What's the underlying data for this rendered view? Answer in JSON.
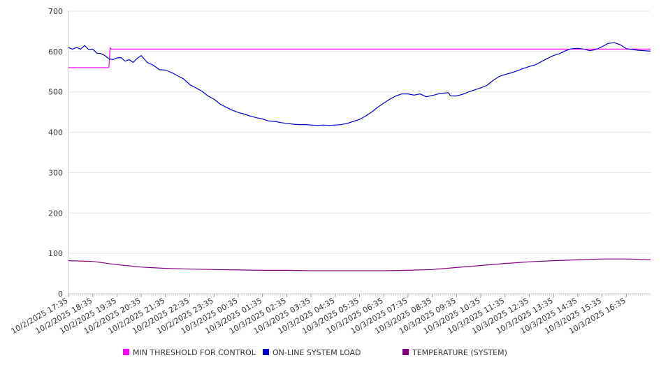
{
  "chart_data": {
    "type": "line",
    "title": "",
    "xlabel": "",
    "ylabel": "",
    "ylim": [
      0,
      700
    ],
    "yticks": [
      0,
      100,
      200,
      300,
      400,
      500,
      600,
      700
    ],
    "grid": true,
    "legend_position": "bottom",
    "x_tick_labels": [
      "10/2/2025 17:35",
      "10/2/2025 18:35",
      "10/2/2025 19:35",
      "10/2/2025 20:35",
      "10/2/2025 21:35",
      "10/2/2025 22:35",
      "10/2/2025 23:35",
      "10/3/2025 00:35",
      "10/3/2025 01:35",
      "10/3/2025 02:35",
      "10/3/2025 03:35",
      "10/3/2025 04:35",
      "10/3/2025 05:35",
      "10/3/2025 06:35",
      "10/3/2025 07:35",
      "10/3/2025 08:35",
      "10/3/2025 09:35",
      "10/3/2025 10:35",
      "10/3/2025 11:35",
      "10/3/2025 12:35",
      "10/3/2025 13:35",
      "10/3/2025 14:35",
      "10/3/2025 15:35",
      "10/3/2025 16:35"
    ],
    "x_range": [
      "10/2/2025 17:35",
      "10/3/2025 17:35"
    ],
    "series": [
      {
        "name": "MIN THRESHOLD FOR CONTROL",
        "color": "#ff00ff",
        "points": [
          [
            "10/2/2025 17:35",
            560
          ],
          [
            "10/2/2025 19:15",
            560
          ],
          [
            "10/2/2025 19:18",
            610
          ],
          [
            "10/2/2025 19:20",
            606
          ],
          [
            "10/3/2025 17:35",
            606
          ]
        ]
      },
      {
        "name": "ON-LINE SYSTEM LOAD",
        "color": "#0000cc",
        "points": [
          [
            "10/2/2025 17:35",
            610
          ],
          [
            "10/2/2025 17:45",
            606
          ],
          [
            "10/2/2025 17:55",
            610
          ],
          [
            "10/2/2025 18:05",
            606
          ],
          [
            "10/2/2025 18:15",
            615
          ],
          [
            "10/2/2025 18:25",
            605
          ],
          [
            "10/2/2025 18:35",
            606
          ],
          [
            "10/2/2025 18:45",
            596
          ],
          [
            "10/2/2025 18:55",
            595
          ],
          [
            "10/2/2025 19:05",
            590
          ],
          [
            "10/2/2025 19:15",
            582
          ],
          [
            "10/2/2025 19:25",
            580
          ],
          [
            "10/2/2025 19:35",
            584
          ],
          [
            "10/2/2025 19:45",
            585
          ],
          [
            "10/2/2025 19:55",
            576
          ],
          [
            "10/2/2025 20:05",
            580
          ],
          [
            "10/2/2025 20:15",
            573
          ],
          [
            "10/2/2025 20:25",
            583
          ],
          [
            "10/2/2025 20:35",
            590
          ],
          [
            "10/2/2025 20:50",
            573
          ],
          [
            "10/2/2025 21:05",
            566
          ],
          [
            "10/2/2025 21:20",
            555
          ],
          [
            "10/2/2025 21:35",
            554
          ],
          [
            "10/2/2025 21:50",
            548
          ],
          [
            "10/2/2025 22:05",
            540
          ],
          [
            "10/2/2025 22:20",
            532
          ],
          [
            "10/2/2025 22:35",
            518
          ],
          [
            "10/2/2025 22:50",
            510
          ],
          [
            "10/2/2025 23:05",
            502
          ],
          [
            "10/2/2025 23:20",
            490
          ],
          [
            "10/2/2025 23:35",
            482
          ],
          [
            "10/2/2025 23:50",
            470
          ],
          [
            "10/3/2025 00:05",
            462
          ],
          [
            "10/3/2025 00:20",
            455
          ],
          [
            "10/3/2025 00:35",
            449
          ],
          [
            "10/3/2025 00:50",
            445
          ],
          [
            "10/3/2025 01:05",
            440
          ],
          [
            "10/3/2025 01:20",
            436
          ],
          [
            "10/3/2025 01:35",
            433
          ],
          [
            "10/3/2025 01:50",
            428
          ],
          [
            "10/3/2025 02:05",
            427
          ],
          [
            "10/3/2025 02:20",
            424
          ],
          [
            "10/3/2025 02:35",
            422
          ],
          [
            "10/3/2025 02:50",
            420
          ],
          [
            "10/3/2025 03:05",
            419
          ],
          [
            "10/3/2025 03:20",
            419
          ],
          [
            "10/3/2025 03:35",
            418
          ],
          [
            "10/3/2025 03:50",
            417
          ],
          [
            "10/3/2025 04:05",
            418
          ],
          [
            "10/3/2025 04:20",
            417
          ],
          [
            "10/3/2025 04:35",
            418
          ],
          [
            "10/3/2025 04:50",
            419
          ],
          [
            "10/3/2025 05:05",
            422
          ],
          [
            "10/3/2025 05:20",
            427
          ],
          [
            "10/3/2025 05:35",
            432
          ],
          [
            "10/3/2025 05:50",
            440
          ],
          [
            "10/3/2025 06:05",
            450
          ],
          [
            "10/3/2025 06:20",
            462
          ],
          [
            "10/3/2025 06:35",
            472
          ],
          [
            "10/3/2025 06:50",
            482
          ],
          [
            "10/3/2025 07:05",
            490
          ],
          [
            "10/3/2025 07:20",
            495
          ],
          [
            "10/3/2025 07:35",
            495
          ],
          [
            "10/3/2025 07:50",
            492
          ],
          [
            "10/3/2025 08:05",
            495
          ],
          [
            "10/3/2025 08:20",
            488
          ],
          [
            "10/3/2025 08:35",
            491
          ],
          [
            "10/3/2025 08:50",
            495
          ],
          [
            "10/3/2025 09:05",
            497
          ],
          [
            "10/3/2025 09:15",
            498
          ],
          [
            "10/3/2025 09:20",
            490
          ],
          [
            "10/3/2025 09:35",
            490
          ],
          [
            "10/3/2025 09:50",
            494
          ],
          [
            "10/3/2025 10:05",
            500
          ],
          [
            "10/3/2025 10:20",
            505
          ],
          [
            "10/3/2025 10:35",
            510
          ],
          [
            "10/3/2025 10:50",
            516
          ],
          [
            "10/3/2025 11:05",
            528
          ],
          [
            "10/3/2025 11:20",
            538
          ],
          [
            "10/3/2025 11:35",
            543
          ],
          [
            "10/3/2025 11:50",
            547
          ],
          [
            "10/3/2025 12:05",
            552
          ],
          [
            "10/3/2025 12:20",
            558
          ],
          [
            "10/3/2025 12:35",
            563
          ],
          [
            "10/3/2025 12:50",
            567
          ],
          [
            "10/3/2025 13:05",
            575
          ],
          [
            "10/3/2025 13:20",
            583
          ],
          [
            "10/3/2025 13:35",
            590
          ],
          [
            "10/3/2025 13:50",
            595
          ],
          [
            "10/3/2025 14:05",
            602
          ],
          [
            "10/3/2025 14:20",
            607
          ],
          [
            "10/3/2025 14:35",
            608
          ],
          [
            "10/3/2025 14:50",
            606
          ],
          [
            "10/3/2025 15:05",
            602
          ],
          [
            "10/3/2025 15:20",
            605
          ],
          [
            "10/3/2025 15:35",
            612
          ],
          [
            "10/3/2025 15:50",
            620
          ],
          [
            "10/3/2025 16:05",
            622
          ],
          [
            "10/3/2025 16:20",
            617
          ],
          [
            "10/3/2025 16:35",
            607
          ],
          [
            "10/3/2025 16:50",
            605
          ],
          [
            "10/3/2025 17:05",
            603
          ],
          [
            "10/3/2025 17:35",
            601
          ]
        ]
      },
      {
        "name": "TEMPERATURE (SYSTEM)",
        "color": "#800080",
        "points": [
          [
            "10/2/2025 17:35",
            82
          ],
          [
            "10/2/2025 18:35",
            80
          ],
          [
            "10/2/2025 19:35",
            72
          ],
          [
            "10/2/2025 20:35",
            66
          ],
          [
            "10/2/2025 21:35",
            63
          ],
          [
            "10/2/2025 22:35",
            61
          ],
          [
            "10/2/2025 23:35",
            60
          ],
          [
            "10/3/2025 00:35",
            59
          ],
          [
            "10/3/2025 01:35",
            58
          ],
          [
            "10/3/2025 02:35",
            58
          ],
          [
            "10/3/2025 03:35",
            57
          ],
          [
            "10/3/2025 04:35",
            57
          ],
          [
            "10/3/2025 05:35",
            57
          ],
          [
            "10/3/2025 06:35",
            57
          ],
          [
            "10/3/2025 07:35",
            58
          ],
          [
            "10/3/2025 08:35",
            60
          ],
          [
            "10/3/2025 09:35",
            65
          ],
          [
            "10/3/2025 10:35",
            70
          ],
          [
            "10/3/2025 11:35",
            75
          ],
          [
            "10/3/2025 12:35",
            79
          ],
          [
            "10/3/2025 13:35",
            82
          ],
          [
            "10/3/2025 14:35",
            84
          ],
          [
            "10/3/2025 15:35",
            86
          ],
          [
            "10/3/2025 16:35",
            86
          ],
          [
            "10/3/2025 17:35",
            84
          ]
        ]
      }
    ]
  }
}
